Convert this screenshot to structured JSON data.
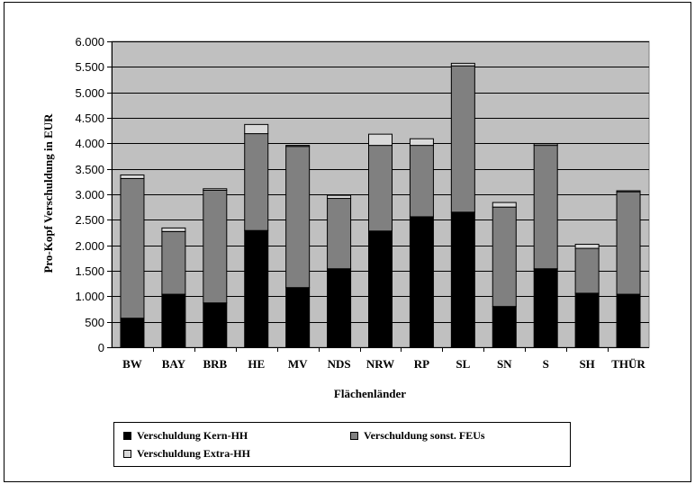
{
  "chart_data": {
    "type": "bar",
    "stacked": true,
    "categories": [
      "BW",
      "BAY",
      "BRB",
      "HE",
      "MV",
      "NDS",
      "NRW",
      "RP",
      "SL",
      "SN",
      "S",
      "SH",
      "THÜR"
    ],
    "series": [
      {
        "name": "Verschuldung Kern-HH",
        "color": "#000000",
        "values": [
          570,
          1040,
          870,
          2290,
          1170,
          1540,
          2280,
          2560,
          2650,
          800,
          1540,
          1060,
          1040
        ]
      },
      {
        "name": "Verschuldung sonst. FEUs",
        "color": "#808080",
        "values": [
          2740,
          1230,
          2210,
          1900,
          2770,
          1380,
          1680,
          1400,
          2870,
          1950,
          2420,
          880,
          2010
        ]
      },
      {
        "name": "Verschuldung Extra-HH",
        "color": "#d9d9d9",
        "values": [
          70,
          70,
          30,
          180,
          20,
          60,
          220,
          130,
          50,
          90,
          30,
          80,
          20
        ]
      }
    ],
    "ylim": [
      0,
      6000
    ],
    "yticks": [
      0,
      500,
      1000,
      1500,
      2000,
      2500,
      3000,
      3500,
      4000,
      4500,
      5000,
      5500,
      6000
    ],
    "ytick_labels": [
      "0",
      "500",
      "1.000",
      "1.500",
      "2.000",
      "2.500",
      "3.000",
      "3.500",
      "4.000",
      "4.500",
      "5.000",
      "5.500",
      "6.000"
    ],
    "xlabel": "Flächenländer",
    "ylabel": "Pro-Kopf Verschuldung in EUR",
    "grid": true,
    "plot_background": "#c0c0c0",
    "legend_position": "bottom"
  }
}
